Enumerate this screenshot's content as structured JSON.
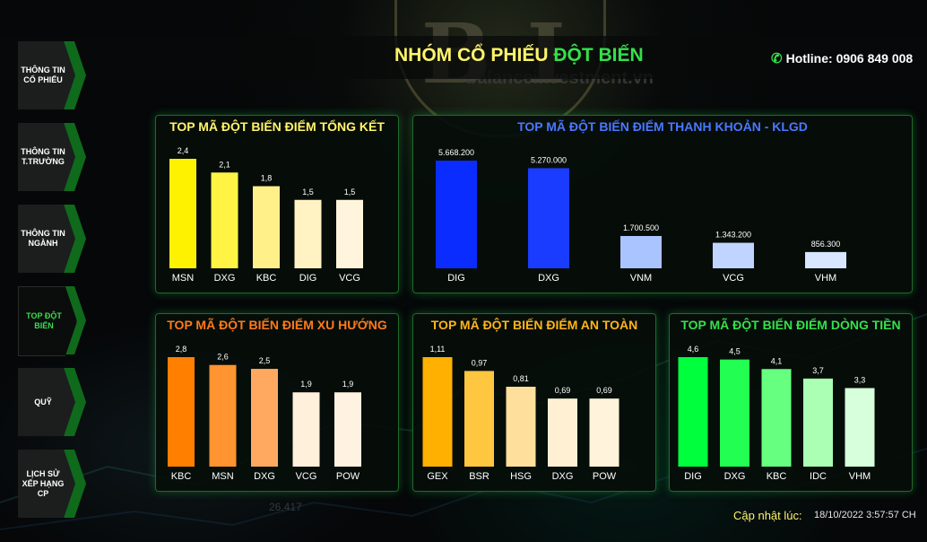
{
  "header": {
    "title_part1": "NHÓM CỔ PHIẾU ",
    "title_part2": "ĐỘT BIẾN",
    "hotline": "Hotline: 0906 849 008",
    "hotline_icon": "phone-icon",
    "watermark_url": "balanceinvestment.vn",
    "logo_letters": "BI",
    "bg_ticker": "26.417"
  },
  "sidebar": {
    "items": [
      {
        "label": "THÔNG TIN CỔ PHIẾU",
        "active": false
      },
      {
        "label": "THÔNG TIN T.TRƯỜNG",
        "active": false
      },
      {
        "label": "THÔNG TIN NGÀNH",
        "active": false
      },
      {
        "label": "TOP ĐỘT BIẾN",
        "active": true
      },
      {
        "label": "QUỸ",
        "active": false
      },
      {
        "label": "LỊCH SỬ XẾP HẠNG CP",
        "active": false
      }
    ]
  },
  "footer": {
    "update_label": "Cập nhật lúc:",
    "update_time": "18/10/2022 3:57:57 CH"
  },
  "chart_data": [
    {
      "type": "bar",
      "title": "TOP MÃ ĐỘT BIẾN ĐIỂM TỔNG KẾT",
      "title_color": "#fff46a",
      "categories": [
        "MSN",
        "DXG",
        "KBC",
        "DIG",
        "VCG"
      ],
      "values": [
        2.4,
        2.1,
        1.8,
        1.5,
        1.5
      ],
      "value_labels": [
        "2,4",
        "2,1",
        "1,8",
        "1,5",
        "1,5"
      ],
      "colors": [
        "#fff200",
        "#fff444",
        "#fff08a",
        "#fff3c4",
        "#fff5dc"
      ],
      "ylim": [
        0,
        2.4
      ]
    },
    {
      "type": "bar",
      "title": "TOP MÃ ĐỘT BIẾN ĐIỂM THANH KHOẢN - KLGD",
      "title_color": "#4a78ff",
      "categories": [
        "DIG",
        "DXG",
        "VNM",
        "VCG",
        "VHM"
      ],
      "values": [
        5668200,
        5270000,
        1700500,
        1343200,
        856300
      ],
      "value_labels": [
        "5.668.200",
        "5.270.000",
        "1.700.500",
        "1.343.200",
        "856.300"
      ],
      "colors": [
        "#0a2cff",
        "#1a3cff",
        "#aac4ff",
        "#c0d4ff",
        "#d8e6ff"
      ],
      "ylim": [
        0,
        5668200
      ]
    },
    {
      "type": "bar",
      "title": "TOP MÃ ĐỘT BIẾN ĐIỂM XU HƯỚNG",
      "title_color": "#ff7a1a",
      "categories": [
        "KBC",
        "MSN",
        "DXG",
        "VCG",
        "POW"
      ],
      "values": [
        2.8,
        2.6,
        2.5,
        1.9,
        1.9
      ],
      "value_labels": [
        "2,8",
        "2,6",
        "2,5",
        "1,9",
        "1,9"
      ],
      "colors": [
        "#ff7f00",
        "#ff9430",
        "#ffa960",
        "#fff0dc",
        "#fff2e0"
      ],
      "ylim": [
        0,
        2.8
      ]
    },
    {
      "type": "bar",
      "title": "TOP MÃ ĐỘT BIẾN ĐIỂM AN TOÀN",
      "title_color": "#ffb41a",
      "categories": [
        "GEX",
        "BSR",
        "HSG",
        "DXG",
        "POW"
      ],
      "values": [
        1.11,
        0.97,
        0.81,
        0.69,
        0.69
      ],
      "value_labels": [
        "1,11",
        "0,97",
        "0,81",
        "0,69",
        "0,69"
      ],
      "colors": [
        "#ffb000",
        "#ffc640",
        "#ffdf9c",
        "#fff0d4",
        "#fff3dc"
      ],
      "ylim": [
        0,
        1.11
      ]
    },
    {
      "type": "bar",
      "title": "TOP MÃ ĐỘT BIẾN ĐIỂM DÒNG TIỀN",
      "title_color": "#35e04a",
      "categories": [
        "DIG",
        "DXG",
        "KBC",
        "IDC",
        "VHM"
      ],
      "values": [
        4.6,
        4.5,
        4.1,
        3.7,
        3.3
      ],
      "value_labels": [
        "4,6",
        "4,5",
        "4,1",
        "3,7",
        "3,3"
      ],
      "colors": [
        "#00ff3c",
        "#22ff52",
        "#66ff80",
        "#aaffb4",
        "#d8ffdc"
      ],
      "ylim": [
        0,
        4.6
      ]
    }
  ]
}
